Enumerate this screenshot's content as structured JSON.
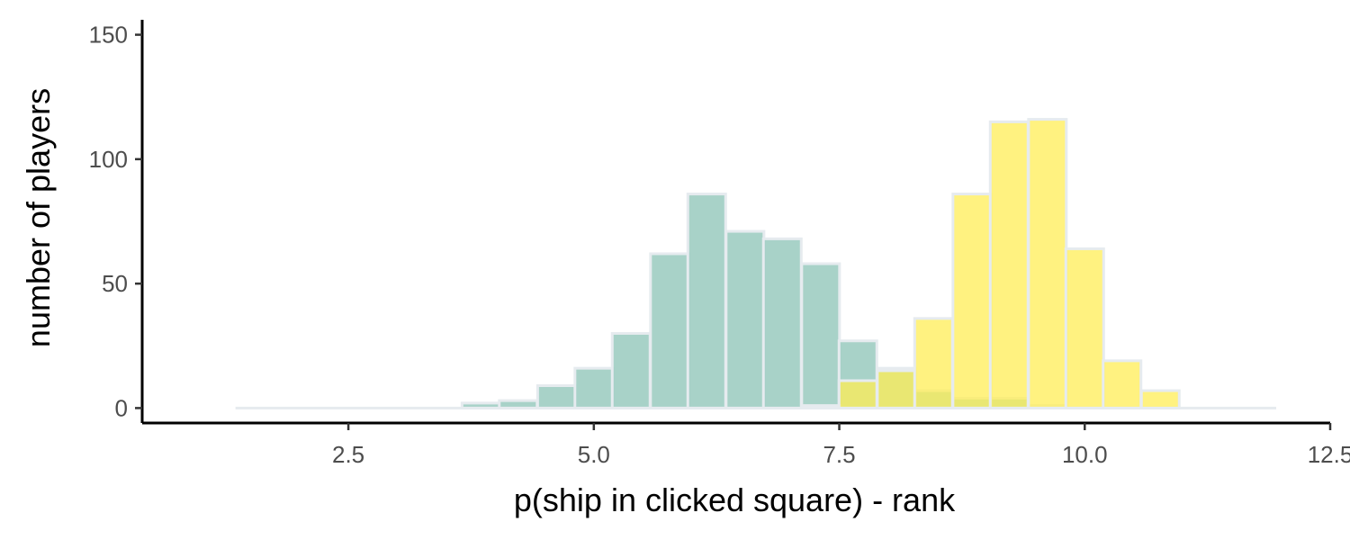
{
  "chart_data": {
    "type": "bar",
    "xlabel": "p(ship in clicked square) - rank",
    "ylabel": "number of players",
    "xlim": [
      0.4,
      12.5
    ],
    "ylim": [
      -6,
      156
    ],
    "x_ticks": [
      2.5,
      5.0,
      7.5,
      10.0,
      12.5
    ],
    "x_tick_labels": [
      "2.5",
      "5.0",
      "7.5",
      "10.0",
      "12.5"
    ],
    "y_ticks": [
      0,
      50,
      100,
      150
    ],
    "y_tick_labels": [
      "0",
      "50",
      "100",
      "150"
    ],
    "bin_width": 0.385,
    "grid": false,
    "legend": "none",
    "series": [
      {
        "color": "#8fc5b8",
        "bins": [
          {
            "x": 3.85,
            "count": 2
          },
          {
            "x": 4.23,
            "count": 3
          },
          {
            "x": 4.62,
            "count": 9
          },
          {
            "x": 5.0,
            "count": 16
          },
          {
            "x": 5.38,
            "count": 30
          },
          {
            "x": 5.77,
            "count": 62
          },
          {
            "x": 6.15,
            "count": 86
          },
          {
            "x": 6.54,
            "count": 71
          },
          {
            "x": 6.92,
            "count": 68
          },
          {
            "x": 7.31,
            "count": 58
          },
          {
            "x": 7.69,
            "count": 27
          },
          {
            "x": 8.08,
            "count": 16
          },
          {
            "x": 8.46,
            "count": 7
          },
          {
            "x": 8.85,
            "count": 4
          },
          {
            "x": 9.23,
            "count": 4
          },
          {
            "x": 9.62,
            "count": 1
          }
        ]
      },
      {
        "color": "#ffee55",
        "bins": [
          {
            "x": 7.31,
            "count": 1
          },
          {
            "x": 7.69,
            "count": 11
          },
          {
            "x": 8.08,
            "count": 15
          },
          {
            "x": 8.46,
            "count": 36
          },
          {
            "x": 8.85,
            "count": 86
          },
          {
            "x": 9.23,
            "count": 115
          },
          {
            "x": 9.62,
            "count": 116
          },
          {
            "x": 10.0,
            "count": 64
          },
          {
            "x": 10.38,
            "count": 19
          },
          {
            "x": 10.77,
            "count": 7
          }
        ]
      }
    ],
    "baseline_range": [
      1.35,
      11.95
    ]
  }
}
